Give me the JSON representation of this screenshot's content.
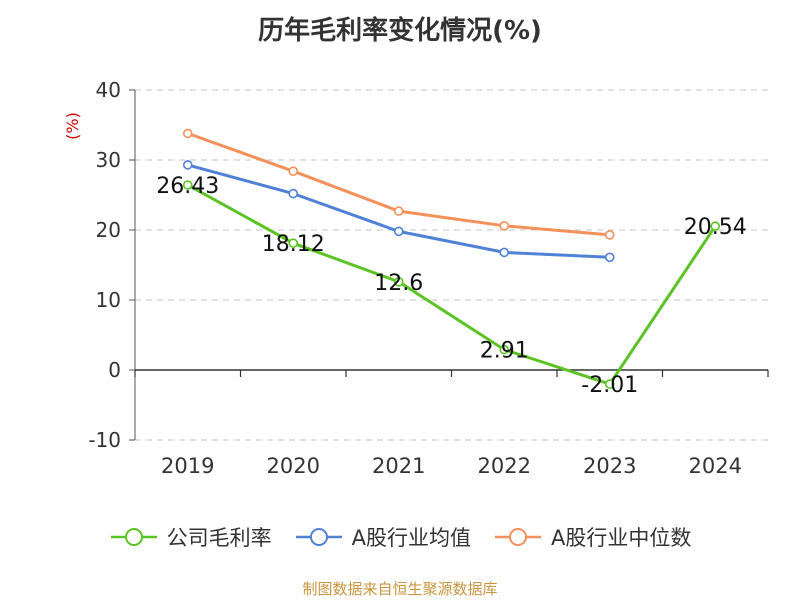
{
  "chart_data": {
    "type": "line",
    "title": "历年毛利率变化情况(%)",
    "ylabel": "(%)",
    "categories": [
      "2019",
      "2020",
      "2021",
      "2022",
      "2023",
      "2024"
    ],
    "ylim": [
      -10,
      40
    ],
    "yticks": [
      -10,
      0,
      10,
      20,
      30,
      40
    ],
    "grid": true,
    "legend_position": "bottom",
    "series": [
      {
        "name": "公司毛利率",
        "color": "#5bc424",
        "values": [
          26.43,
          18.12,
          12.6,
          2.91,
          -2.01,
          20.54
        ],
        "labels": [
          "26.43",
          "18.12",
          "12.6",
          "2.91",
          "-2.01",
          "20.54"
        ]
      },
      {
        "name": "A股行业均值",
        "color": "#4f81d6",
        "values": [
          29.3,
          25.2,
          19.8,
          16.8,
          16.1,
          null
        ]
      },
      {
        "name": "A股行业中位数",
        "color": "#f4905a",
        "values": [
          33.8,
          28.4,
          22.7,
          20.6,
          19.3,
          null
        ]
      }
    ]
  },
  "footer": {
    "source": "制图数据来自恒生聚源数据库"
  }
}
